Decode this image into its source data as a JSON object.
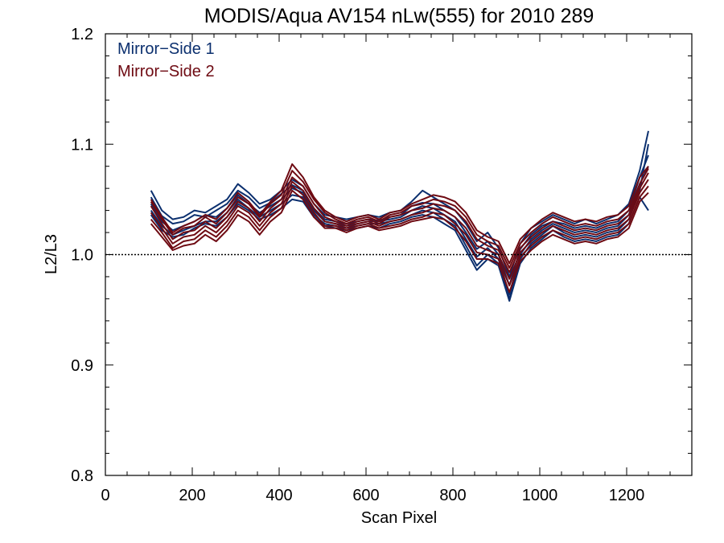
{
  "chart_data": {
    "type": "line",
    "title": "MODIS/Aqua AV154 nLw(555) for 2010 289",
    "xlabel": "Scan Pixel",
    "ylabel": "L2/L3",
    "xlim": [
      0,
      1350
    ],
    "ylim": [
      0.8,
      1.2
    ],
    "xticks": [
      0,
      200,
      400,
      600,
      800,
      1000,
      1200
    ],
    "yticks": [
      0.8,
      0.9,
      1.0,
      1.1,
      1.2
    ],
    "xtick_labels": [
      "0",
      "200",
      "400",
      "600",
      "800",
      "1000",
      "1200"
    ],
    "ytick_labels": [
      "0.8",
      "0.9",
      "1.0",
      "1.1",
      "1.2"
    ],
    "reference_line": 1.0,
    "legend_placement": "top-left",
    "legend": [
      {
        "label": "Mirror−Side 1",
        "color": "#0b2f6e"
      },
      {
        "label": "Mirror−Side 2",
        "color": "#6e0a12"
      }
    ],
    "x": [
      105,
      130,
      155,
      180,
      205,
      230,
      255,
      280,
      305,
      330,
      355,
      380,
      405,
      430,
      455,
      480,
      505,
      530,
      555,
      580,
      605,
      630,
      655,
      680,
      705,
      730,
      755,
      780,
      805,
      830,
      855,
      880,
      905,
      930,
      955,
      980,
      1005,
      1030,
      1055,
      1080,
      1105,
      1130,
      1155,
      1180,
      1205,
      1230,
      1250
    ],
    "series": [
      {
        "group": 1,
        "values": [
          1.052,
          1.035,
          1.028,
          1.03,
          1.036,
          1.034,
          1.04,
          1.046,
          1.058,
          1.052,
          1.042,
          1.047,
          1.055,
          1.063,
          1.058,
          1.042,
          1.032,
          1.03,
          1.028,
          1.03,
          1.032,
          1.031,
          1.034,
          1.036,
          1.044,
          1.047,
          1.046,
          1.04,
          1.034,
          1.02,
          1.005,
          1.012,
          1.0,
          0.972,
          1.005,
          1.018,
          1.026,
          1.03,
          1.028,
          1.024,
          1.026,
          1.024,
          1.028,
          1.03,
          1.04,
          1.07,
          1.09
        ]
      },
      {
        "group": 1,
        "values": [
          1.046,
          1.03,
          1.022,
          1.026,
          1.03,
          1.036,
          1.034,
          1.042,
          1.054,
          1.046,
          1.038,
          1.044,
          1.05,
          1.06,
          1.056,
          1.04,
          1.03,
          1.028,
          1.026,
          1.028,
          1.03,
          1.03,
          1.032,
          1.034,
          1.04,
          1.044,
          1.042,
          1.036,
          1.03,
          1.014,
          0.998,
          1.006,
          0.996,
          0.964,
          1.0,
          1.014,
          1.022,
          1.028,
          1.024,
          1.02,
          1.022,
          1.02,
          1.024,
          1.026,
          1.036,
          1.064,
          1.08
        ]
      },
      {
        "group": 1,
        "values": [
          1.04,
          1.026,
          1.018,
          1.022,
          1.026,
          1.03,
          1.03,
          1.038,
          1.05,
          1.042,
          1.034,
          1.04,
          1.046,
          1.054,
          1.052,
          1.036,
          1.028,
          1.026,
          1.024,
          1.026,
          1.028,
          1.028,
          1.03,
          1.032,
          1.036,
          1.04,
          1.038,
          1.032,
          1.026,
          1.008,
          0.99,
          1.0,
          0.992,
          0.96,
          0.996,
          1.01,
          1.018,
          1.026,
          1.02,
          1.016,
          1.018,
          1.016,
          1.02,
          1.022,
          1.032,
          1.058,
          1.1
        ]
      },
      {
        "group": 1,
        "values": [
          1.058,
          1.04,
          1.032,
          1.034,
          1.04,
          1.038,
          1.044,
          1.05,
          1.064,
          1.056,
          1.046,
          1.05,
          1.058,
          1.068,
          1.062,
          1.046,
          1.036,
          1.034,
          1.032,
          1.034,
          1.036,
          1.034,
          1.038,
          1.04,
          1.048,
          1.058,
          1.052,
          1.046,
          1.04,
          1.028,
          1.012,
          1.02,
          1.006,
          0.98,
          1.01,
          1.024,
          1.03,
          1.036,
          1.032,
          1.028,
          1.032,
          1.028,
          1.032,
          1.036,
          1.046,
          1.076,
          1.112
        ]
      },
      {
        "group": 1,
        "values": [
          1.036,
          1.022,
          1.016,
          1.018,
          1.024,
          1.028,
          1.026,
          1.034,
          1.046,
          1.04,
          1.032,
          1.036,
          1.042,
          1.05,
          1.048,
          1.034,
          1.026,
          1.024,
          1.022,
          1.024,
          1.026,
          1.024,
          1.028,
          1.03,
          1.034,
          1.036,
          1.034,
          1.028,
          1.022,
          1.004,
          0.986,
          0.996,
          0.99,
          0.958,
          0.992,
          1.006,
          1.014,
          1.022,
          1.016,
          1.012,
          1.014,
          1.012,
          1.016,
          1.018,
          1.028,
          1.052,
          1.04
        ]
      },
      {
        "group": 2,
        "values": [
          1.044,
          1.028,
          1.014,
          1.02,
          1.022,
          1.03,
          1.024,
          1.034,
          1.048,
          1.042,
          1.03,
          1.042,
          1.05,
          1.07,
          1.062,
          1.046,
          1.034,
          1.03,
          1.026,
          1.03,
          1.032,
          1.028,
          1.034,
          1.036,
          1.04,
          1.042,
          1.046,
          1.044,
          1.04,
          1.03,
          1.014,
          1.008,
          1.004,
          0.984,
          1.006,
          1.016,
          1.024,
          1.03,
          1.026,
          1.022,
          1.024,
          1.022,
          1.026,
          1.028,
          1.036,
          1.06,
          1.074
        ]
      },
      {
        "group": 2,
        "values": [
          1.038,
          1.024,
          1.01,
          1.016,
          1.018,
          1.026,
          1.02,
          1.03,
          1.044,
          1.038,
          1.026,
          1.038,
          1.046,
          1.066,
          1.058,
          1.042,
          1.03,
          1.028,
          1.024,
          1.028,
          1.03,
          1.026,
          1.03,
          1.032,
          1.036,
          1.038,
          1.042,
          1.04,
          1.034,
          1.024,
          1.008,
          1.004,
          1.0,
          0.978,
          1.002,
          1.012,
          1.02,
          1.026,
          1.022,
          1.018,
          1.02,
          1.018,
          1.022,
          1.024,
          1.032,
          1.056,
          1.068
        ]
      },
      {
        "group": 2,
        "values": [
          1.032,
          1.02,
          1.006,
          1.012,
          1.014,
          1.022,
          1.016,
          1.026,
          1.04,
          1.034,
          1.022,
          1.034,
          1.042,
          1.062,
          1.054,
          1.038,
          1.026,
          1.026,
          1.022,
          1.026,
          1.028,
          1.024,
          1.026,
          1.028,
          1.032,
          1.034,
          1.038,
          1.036,
          1.028,
          1.018,
          1.002,
          1.0,
          0.996,
          0.972,
          0.998,
          1.008,
          1.016,
          1.022,
          1.018,
          1.014,
          1.016,
          1.014,
          1.018,
          1.02,
          1.028,
          1.052,
          1.062
        ]
      },
      {
        "group": 2,
        "values": [
          1.048,
          1.032,
          1.018,
          1.024,
          1.026,
          1.034,
          1.028,
          1.038,
          1.052,
          1.046,
          1.034,
          1.046,
          1.054,
          1.076,
          1.066,
          1.05,
          1.038,
          1.032,
          1.028,
          1.032,
          1.034,
          1.03,
          1.036,
          1.038,
          1.044,
          1.046,
          1.05,
          1.048,
          1.044,
          1.034,
          1.018,
          1.012,
          1.008,
          0.988,
          1.01,
          1.02,
          1.028,
          1.034,
          1.03,
          1.026,
          1.028,
          1.026,
          1.03,
          1.032,
          1.04,
          1.064,
          1.078
        ]
      },
      {
        "group": 2,
        "values": [
          1.028,
          1.016,
          1.004,
          1.008,
          1.01,
          1.018,
          1.012,
          1.022,
          1.036,
          1.03,
          1.018,
          1.03,
          1.038,
          1.058,
          1.05,
          1.034,
          1.024,
          1.024,
          1.02,
          1.024,
          1.026,
          1.022,
          1.024,
          1.026,
          1.03,
          1.032,
          1.034,
          1.032,
          1.024,
          1.012,
          0.996,
          0.996,
          0.992,
          0.966,
          0.994,
          1.004,
          1.012,
          1.018,
          1.014,
          1.01,
          1.012,
          1.01,
          1.014,
          1.016,
          1.024,
          1.048,
          1.056
        ]
      },
      {
        "group": 2,
        "values": [
          1.05,
          1.034,
          1.02,
          1.026,
          1.03,
          1.036,
          1.032,
          1.042,
          1.056,
          1.048,
          1.036,
          1.048,
          1.058,
          1.082,
          1.07,
          1.052,
          1.04,
          1.034,
          1.03,
          1.034,
          1.036,
          1.032,
          1.038,
          1.04,
          1.046,
          1.05,
          1.054,
          1.052,
          1.048,
          1.038,
          1.022,
          1.016,
          1.012,
          0.992,
          1.014,
          1.024,
          1.032,
          1.038,
          1.034,
          1.03,
          1.032,
          1.03,
          1.034,
          1.036,
          1.044,
          1.07,
          1.08
        ]
      }
    ]
  }
}
